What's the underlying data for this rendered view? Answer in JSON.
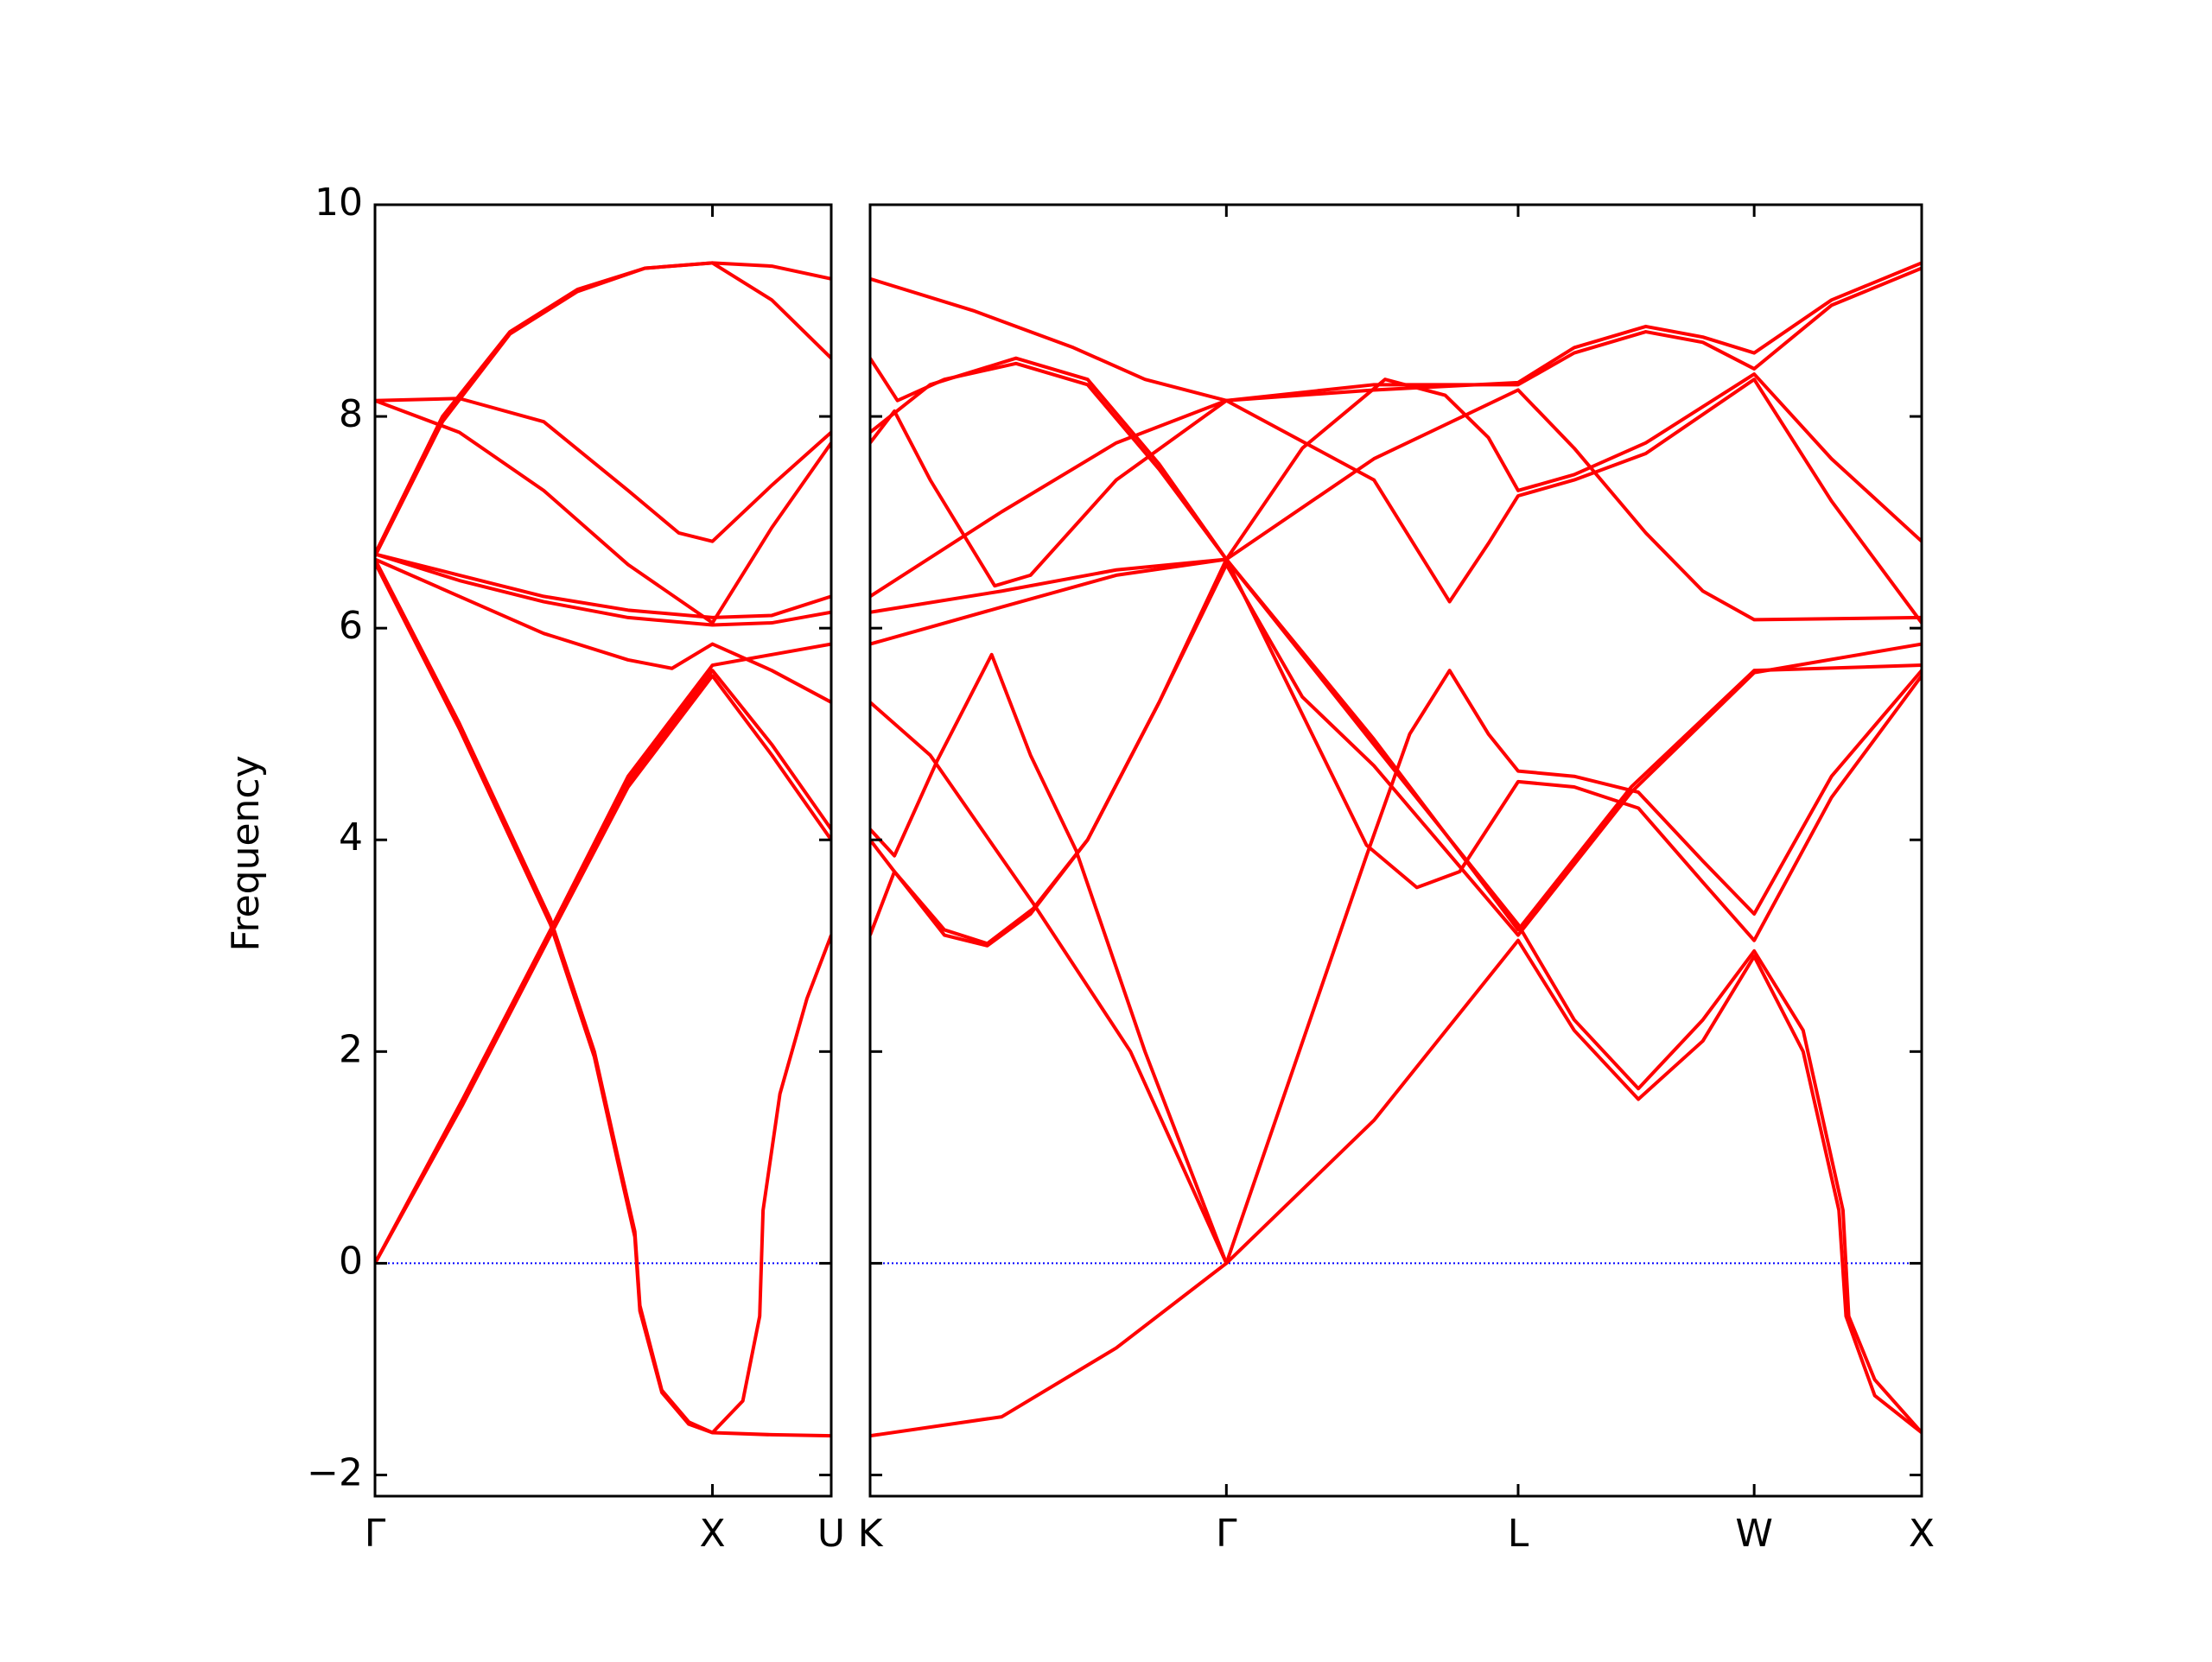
{
  "chart_data": [
    {
      "type": "line",
      "ylabel": "Frequency",
      "color": "#ff0000",
      "show_ytick_labels": true,
      "xlim": [
        0,
        1.352
      ],
      "xticks": [
        {
          "value": 0,
          "label": "Γ"
        },
        {
          "value": 1,
          "label": "X"
        },
        {
          "value": 1.352,
          "label": "U"
        }
      ],
      "ylim": [
        -2.2,
        10
      ],
      "yticks": [
        {
          "value": -2,
          "label": "−2"
        },
        0,
        2,
        4,
        6,
        8,
        10
      ],
      "hline": {
        "y": 0,
        "color": "#0000ff"
      },
      "series": [
        {
          "x": [
            0,
            0.2,
            0.4,
            0.6,
            0.8,
            1,
            1.176,
            1.352
          ],
          "values": [
            6.7,
            8.0,
            8.8,
            9.2,
            9.4,
            9.45,
            9.42,
            9.3
          ]
        },
        {
          "x": [
            0,
            0.2,
            0.4,
            0.6,
            0.8,
            1,
            1.176,
            1.352
          ],
          "values": [
            6.68,
            7.95,
            8.78,
            9.18,
            9.4,
            9.45,
            9.1,
            8.55
          ]
        },
        {
          "x": [
            0,
            0.25,
            0.5,
            0.75,
            0.9,
            1,
            1.176,
            1.352
          ],
          "values": [
            8.15,
            8.17,
            7.95,
            7.3,
            6.9,
            6.82,
            7.35,
            7.85
          ]
        },
        {
          "x": [
            0,
            0.25,
            0.5,
            0.75,
            1,
            1.176,
            1.352
          ],
          "values": [
            8.15,
            7.85,
            7.3,
            6.6,
            6.05,
            6.95,
            7.75
          ]
        },
        {
          "x": [
            0,
            0.25,
            0.5,
            0.75,
            1,
            1.176,
            1.352
          ],
          "values": [
            6.7,
            6.5,
            6.3,
            6.17,
            6.1,
            6.12,
            6.3
          ]
        },
        {
          "x": [
            0,
            0.25,
            0.5,
            0.75,
            0.88,
            1,
            1.176,
            1.352
          ],
          "values": [
            6.65,
            6.3,
            5.95,
            5.7,
            5.62,
            5.85,
            5.6,
            5.3
          ]
        },
        {
          "x": [
            0,
            0.26,
            0.52,
            0.75,
            1,
            1.176,
            1.352
          ],
          "values": [
            0,
            1.55,
            3.15,
            4.6,
            5.65,
            5.75,
            5.85
          ]
        },
        {
          "x": [
            0,
            0.26,
            0.52,
            0.75,
            1,
            1.176,
            1.352
          ],
          "values": [
            0,
            1.5,
            3.1,
            4.5,
            5.55,
            4.8,
            4.0
          ]
        },
        {
          "x": [
            0,
            0.26,
            0.52,
            0.75,
            1,
            1.176,
            1.352
          ],
          "values": [
            0,
            1.52,
            3.12,
            4.55,
            5.6,
            4.9,
            4.1
          ]
        },
        {
          "x": [
            0,
            0.25,
            0.52,
            0.65,
            0.72,
            0.77,
            0.785,
            0.85,
            0.93,
            1,
            1.176,
            1.352
          ],
          "values": [
            6.65,
            5.1,
            3.25,
            2.0,
            1.0,
            0.3,
            -0.4,
            -1.2,
            -1.5,
            -1.6,
            -1.62,
            -1.63
          ]
        },
        {
          "x": [
            0,
            0.25,
            0.52,
            0.65,
            0.72,
            0.77,
            0.785,
            0.85,
            0.93,
            1,
            1.09,
            1.14,
            1.15,
            1.2,
            1.28,
            1.352
          ],
          "values": [
            6.62,
            5.05,
            3.2,
            1.95,
            0.95,
            0.25,
            -0.45,
            -1.22,
            -1.52,
            -1.6,
            -1.3,
            -0.5,
            0.5,
            1.6,
            2.5,
            3.1
          ]
        },
        {
          "x": [
            0,
            0.25,
            0.5,
            0.75,
            1,
            1.176,
            1.352
          ],
          "values": [
            6.7,
            6.45,
            6.25,
            6.1,
            6.03,
            6.05,
            6.15
          ]
        }
      ]
    },
    {
      "type": "line",
      "color": "#ff0000",
      "show_ytick_labels": false,
      "xlim": [
        1.352,
        4.466
      ],
      "xticks": [
        {
          "value": 1.352,
          "label": "K"
        },
        {
          "value": 2.407,
          "label": "Γ"
        },
        {
          "value": 3.271,
          "label": "L"
        },
        {
          "value": 3.97,
          "label": "W"
        },
        {
          "value": 4.466,
          "label": "X"
        }
      ],
      "ylim": [
        -2.2,
        10
      ],
      "yticks": [
        -2,
        0,
        2,
        4,
        6,
        8,
        10
      ],
      "hline": {
        "y": 0,
        "color": "#0000ff"
      },
      "series": [
        {
          "x": [
            1.352,
            1.657,
            1.954,
            2.166,
            2.407,
            2.844,
            3.271,
            3.437,
            3.649,
            3.818,
            3.97,
            4.199,
            4.466
          ],
          "values": [
            9.3,
            9.0,
            8.65,
            8.35,
            8.15,
            8.25,
            8.32,
            8.65,
            8.85,
            8.75,
            8.6,
            9.1,
            9.45
          ]
        },
        {
          "x": [
            1.352,
            1.433,
            1.572,
            1.784,
            1.996,
            2.208,
            2.407,
            2.632,
            2.877,
            3.055,
            3.183,
            3.271,
            3.437,
            3.649,
            3.97,
            4.199,
            4.466
          ],
          "values": [
            8.55,
            8.15,
            8.35,
            8.5,
            8.3,
            7.5,
            6.65,
            7.7,
            8.35,
            8.2,
            7.8,
            7.3,
            7.45,
            7.75,
            8.4,
            7.6,
            6.82
          ]
        },
        {
          "x": [
            1.352,
            1.53,
            1.784,
            1.996,
            2.208,
            2.407,
            2.844,
            3.271,
            3.437,
            3.649,
            3.818,
            3.97,
            4.466
          ],
          "values": [
            7.85,
            8.3,
            8.55,
            8.35,
            7.55,
            6.65,
            7.6,
            8.25,
            7.7,
            6.9,
            6.35,
            6.08,
            6.1
          ]
        },
        {
          "x": [
            1.352,
            1.424,
            1.53,
            1.721,
            1.827,
            2.081,
            2.407,
            2.844,
            3.068,
            3.183,
            3.271,
            3.437,
            3.649,
            3.97,
            4.199,
            4.466
          ],
          "values": [
            7.75,
            8.05,
            7.4,
            6.4,
            6.5,
            7.4,
            8.15,
            7.4,
            6.25,
            6.8,
            7.25,
            7.4,
            7.65,
            8.35,
            7.2,
            6.05
          ]
        },
        {
          "x": [
            1.352,
            1.742,
            2.081,
            2.407,
            2.844,
            3.271,
            3.437,
            3.649,
            3.818,
            3.97,
            4.199,
            4.466
          ],
          "values": [
            6.3,
            7.1,
            7.75,
            8.15,
            8.3,
            8.3,
            8.6,
            8.8,
            8.7,
            8.45,
            9.05,
            9.4
          ]
        },
        {
          "x": [
            1.352,
            1.742,
            2.081,
            2.407,
            2.822,
            2.971,
            3.098,
            3.271,
            3.437,
            3.627,
            3.818,
            3.97,
            4.199,
            4.466
          ],
          "values": [
            6.15,
            6.35,
            6.55,
            6.65,
            3.95,
            3.55,
            3.7,
            4.55,
            4.5,
            4.3,
            3.6,
            3.05,
            4.4,
            5.55
          ]
        },
        {
          "x": [
            1.352,
            1.742,
            2.081,
            2.407,
            2.844,
            3.271,
            3.437,
            3.627,
            3.818,
            3.97,
            4.115,
            4.233,
            4.25,
            4.327,
            4.466
          ],
          "values": [
            5.85,
            6.2,
            6.5,
            6.65,
            4.9,
            3.2,
            2.3,
            1.65,
            2.3,
            2.95,
            2.2,
            0.5,
            -0.5,
            -1.1,
            -1.6
          ]
        },
        {
          "x": [
            1.352,
            1.53,
            1.835,
            2.123,
            2.407,
            2.822,
            2.95,
            3.068,
            3.183,
            3.271,
            3.437,
            3.627,
            3.818,
            3.97,
            4.199,
            4.466
          ],
          "values": [
            5.3,
            4.8,
            3.4,
            2.0,
            0,
            3.85,
            5.0,
            5.6,
            5.0,
            4.65,
            4.6,
            4.45,
            3.8,
            3.3,
            4.6,
            5.6
          ]
        },
        {
          "x": [
            1.352,
            1.424,
            1.551,
            1.712,
            1.827,
            1.962,
            2.166,
            2.407
          ],
          "values": [
            4.1,
            3.85,
            4.75,
            5.75,
            4.8,
            3.9,
            2.0,
            0
          ]
        },
        {
          "x": [
            1.352,
            1.424,
            1.572,
            1.699,
            1.827,
            1.996,
            2.208,
            2.407,
            2.844,
            3.271,
            3.606,
            3.97,
            4.466
          ],
          "values": [
            4.0,
            3.7,
            3.1,
            3.0,
            3.3,
            4.0,
            5.3,
            6.65,
            4.95,
            3.15,
            4.5,
            5.6,
            5.65
          ]
        },
        {
          "x": [
            1.352,
            1.424,
            1.572,
            1.699,
            1.835,
            1.996,
            2.208,
            2.407,
            2.632,
            2.844,
            3.271,
            3.606,
            3.97,
            4.466
          ],
          "values": [
            3.1,
            3.7,
            3.15,
            3.02,
            3.35,
            4.0,
            5.3,
            6.6,
            5.35,
            4.7,
            3.1,
            4.45,
            5.58,
            5.85
          ]
        },
        {
          "x": [
            1.352,
            1.742,
            2.081,
            2.407,
            2.844,
            3.271,
            3.437,
            3.627,
            3.818,
            3.97,
            4.115,
            4.221,
            4.242,
            4.327,
            4.466
          ],
          "values": [
            -1.63,
            -1.45,
            -0.8,
            0,
            1.35,
            3.05,
            2.2,
            1.55,
            2.1,
            2.9,
            2.0,
            0.5,
            -0.5,
            -1.25,
            -1.6
          ]
        }
      ]
    }
  ]
}
